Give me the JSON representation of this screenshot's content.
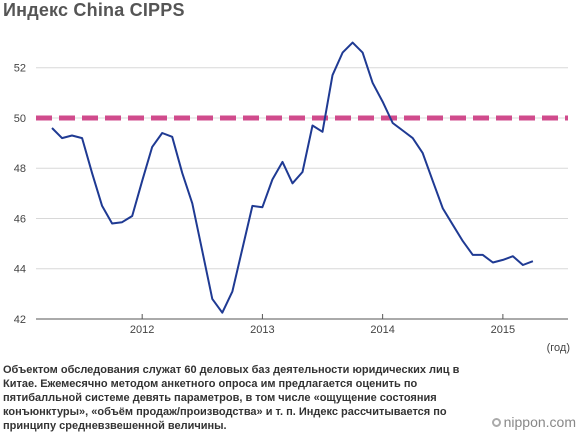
{
  "title": "Индекс China CIPPS",
  "note": "Объектом обследования служат 60 деловых баз деятельности юридических лиц в Китае. Ежемесячно методом анкетного опроса им предлагается оценить по пятибалльной системе девять параметров, в том числе «ощущение состояния конъюнктуры», «объём продаж/производства» и т. п. Индекс рассчитывается по принципу средневзвешенной величины.",
  "brand": "nippon.com",
  "colors": {
    "line": "#1f3a93",
    "reference": "#d04b8c",
    "axis": "#555555"
  },
  "chart_data": {
    "type": "line",
    "title": "Индекс China CIPPS",
    "xlabel": "(год)",
    "ylabel": "",
    "ylim": [
      42,
      53.5
    ],
    "yticks": [
      42,
      44,
      46,
      48,
      50,
      52
    ],
    "xticks": [
      {
        "label": "2012",
        "month": 9
      },
      {
        "label": "2013",
        "month": 21
      },
      {
        "label": "2014",
        "month": 33
      },
      {
        "label": "2015",
        "month": 45
      }
    ],
    "x_range_months": [
      0,
      51
    ],
    "reference_line": 50,
    "grid": true,
    "series": [
      {
        "values": [
          49.6,
          49.2,
          49.3,
          49.2,
          47.8,
          46.5,
          45.8,
          45.85,
          46.1,
          47.5,
          48.85,
          49.4,
          49.25,
          47.8,
          46.6,
          44.7,
          42.8,
          42.25,
          43.1,
          44.8,
          46.5,
          46.45,
          47.55,
          48.25,
          47.4,
          47.85,
          49.7,
          49.45,
          51.7,
          52.6,
          53.0,
          52.6,
          51.4,
          50.65,
          49.8,
          49.5,
          49.2,
          48.6,
          47.5,
          46.4,
          45.75,
          45.1,
          44.55,
          44.55,
          44.25,
          44.35,
          44.5,
          44.15,
          44.3
        ]
      }
    ]
  }
}
